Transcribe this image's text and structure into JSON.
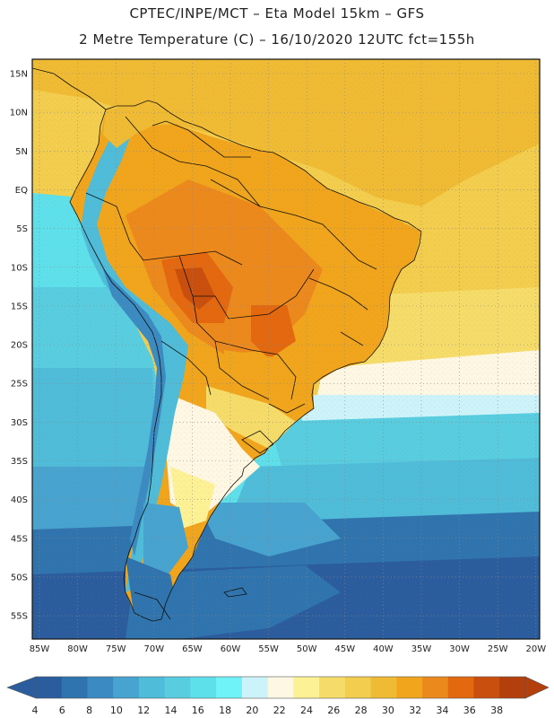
{
  "header": {
    "line1": "CPTEC/INPE/MCT –   Eta Model 15km – GFS",
    "line2": "2 Metre Temperature (C) – 16/10/2020 12UTC fct=155h"
  },
  "map": {
    "latitude_labels": [
      "15N",
      "10N",
      "5N",
      "EQ",
      "5S",
      "10S",
      "15S",
      "20S",
      "25S",
      "30S",
      "35S",
      "40S",
      "45S",
      "50S",
      "55S"
    ],
    "longitude_labels": [
      "85W",
      "80W",
      "75W",
      "70W",
      "65W",
      "60W",
      "55W",
      "50W",
      "45W",
      "40W",
      "35W",
      "30W",
      "25W",
      "20W"
    ]
  },
  "colorbar": {
    "labels": [
      "4",
      "6",
      "8",
      "10",
      "12",
      "14",
      "16",
      "18",
      "20",
      "22",
      "24",
      "26",
      "28",
      "30",
      "32",
      "34",
      "36",
      "38"
    ],
    "colors": [
      "#2b5d9e",
      "#2f74ae",
      "#3b8bc2",
      "#47a3cf",
      "#4fbcd9",
      "#58cde0",
      "#5ee0eb",
      "#6ff2f8",
      "#cdf3fa",
      "#fdf7e3",
      "#fcf195",
      "#f5dc6a",
      "#f2cd4e",
      "#efbb34",
      "#f0a51d",
      "#ec891d",
      "#e3680f",
      "#c94f0e",
      "#b3400c"
    ]
  }
}
